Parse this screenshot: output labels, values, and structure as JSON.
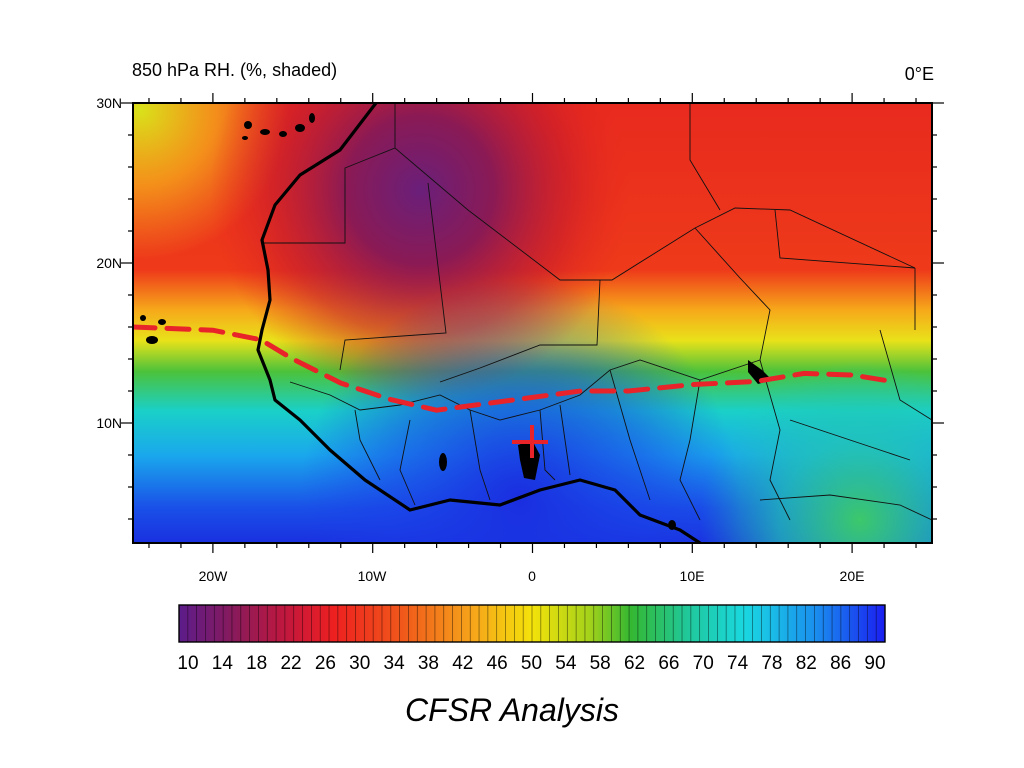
{
  "header": {
    "title": "850 hPa RH. (%, shaded)",
    "level_label": "0°E"
  },
  "map": {
    "lat_labels": [
      "30N",
      "20N",
      "10N"
    ],
    "lon_labels": [
      "20W",
      "10W",
      "0",
      "10E",
      "20E"
    ],
    "region": "West Africa",
    "lon_range": [
      -25,
      25
    ],
    "lat_range": [
      2.5,
      30
    ],
    "overlay_line": {
      "style": "dashed",
      "color": "#e8232a",
      "points": [
        [
          -25,
          16.0
        ],
        [
          -20,
          15.8
        ],
        [
          -17,
          15.2
        ],
        [
          -15,
          14.0
        ],
        [
          -12,
          12.5
        ],
        [
          -9,
          11.5
        ],
        [
          -6,
          10.8
        ],
        [
          -3,
          11.2
        ],
        [
          0,
          11.6
        ],
        [
          3,
          12.0
        ],
        [
          6,
          12.0
        ],
        [
          10,
          12.4
        ],
        [
          14,
          12.6
        ],
        [
          17,
          13.1
        ],
        [
          20,
          13.0
        ],
        [
          22.5,
          12.6
        ]
      ]
    }
  },
  "colorbar": {
    "ticks": [
      "10",
      "14",
      "18",
      "22",
      "26",
      "30",
      "34",
      "38",
      "42",
      "46",
      "50",
      "54",
      "58",
      "62",
      "66",
      "70",
      "74",
      "78",
      "82",
      "86",
      "90"
    ],
    "color_low": "#5c1c8a",
    "color_mid": "#f4e20a",
    "color_high": "#1a1ef0"
  },
  "footer": {
    "caption": "CFSR Analysis"
  }
}
